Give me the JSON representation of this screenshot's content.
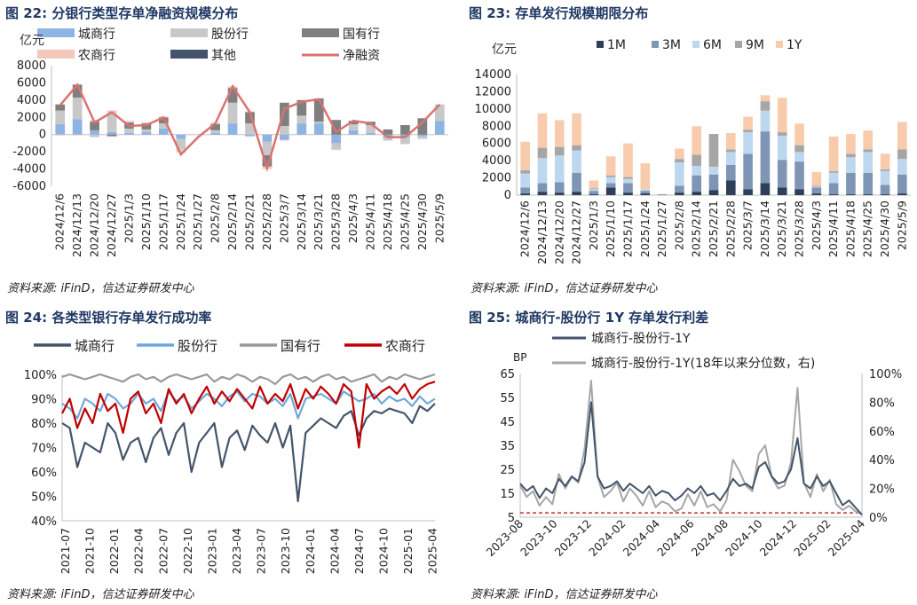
{
  "colors": {
    "title": "#1f3864"
  },
  "charts": [
    {
      "id": "c22",
      "title": "图 22: 分银行类型存单净融资规模分布",
      "source": "资料来源: iFinD，信达证券研发中心",
      "chart_data": {
        "type": "bar",
        "unit_label": "亿元",
        "ylim": [
          -6000,
          8000
        ],
        "yticks": [
          "8000",
          "6000",
          "4000",
          "2000",
          "0",
          "-2000",
          "-4000",
          "-6000"
        ],
        "ytick_values": [
          8000,
          6000,
          4000,
          2000,
          0,
          -2000,
          -4000,
          -6000
        ],
        "categories": [
          "2024/12/6",
          "2024/12/13",
          "2024/12/20",
          "2024/12/27",
          "2025/1/3",
          "2025/1/10",
          "2025/1/17",
          "2025/1/24",
          "2025/1/27",
          "2025/2/8",
          "2025/2/14",
          "2025/2/21",
          "2025/2/28",
          "2025/3/7",
          "2025/3/14",
          "2025/3/21",
          "2025/3/28",
          "2025/4/3",
          "2025/4/11",
          "2025/4/18",
          "2025/4/25",
          "2025/4/30",
          "2025/5/9"
        ],
        "series": [
          {
            "name": "城商行",
            "color": "#8db4e2",
            "values": [
              1200,
              1800,
              500,
              300,
              200,
              300,
              700,
              -500,
              0,
              200,
              1300,
              -200,
              -800,
              -600,
              1300,
              1300,
              -1000,
              500,
              200,
              -400,
              -300,
              -200,
              1600
            ]
          },
          {
            "name": "股份行",
            "color": "#c8c8c8",
            "values": [
              1600,
              2500,
              -300,
              2200,
              500,
              300,
              600,
              -1200,
              0,
              300,
              2400,
              1300,
              -1600,
              1000,
              900,
              200,
              -700,
              700,
              900,
              -300,
              -800,
              -300,
              1900
            ]
          },
          {
            "name": "国有行",
            "color": "#7f7f7f",
            "values": [
              700,
              1500,
              1000,
              -200,
              700,
              700,
              700,
              0,
              0,
              700,
              1700,
              1300,
              -1300,
              2700,
              1800,
              2700,
              1700,
              400,
              400,
              600,
              1100,
              1900,
              0
            ]
          },
          {
            "name": "农商行",
            "color": "#f4c7b8",
            "values": [
              -100,
              -100,
              200,
              300,
              200,
              100,
              100,
              -400,
              0,
              200,
              200,
              100,
              -300,
              -100,
              0,
              0,
              -100,
              0,
              0,
              0,
              0,
              0,
              0
            ]
          },
          {
            "name": "其他",
            "color": "#44546a",
            "values": [
              0,
              0,
              0,
              0,
              0,
              0,
              0,
              0,
              0,
              0,
              0,
              0,
              0,
              0,
              0,
              0,
              0,
              0,
              0,
              0,
              0,
              0,
              0
            ]
          }
        ],
        "line": {
          "name": "净融资",
          "color": "#d97373",
          "values": [
            3400,
            5800,
            1400,
            2600,
            1000,
            1100,
            2000,
            -2300,
            -300,
            1300,
            5600,
            2600,
            -3900,
            3000,
            3800,
            4100,
            300,
            1600,
            1300,
            -300,
            -300,
            1400,
            3500
          ]
        }
      }
    },
    {
      "id": "c23",
      "title": "图 23: 存单发行规模期限分布",
      "source": "资料来源: iFinD，信达证券研发中心",
      "chart_data": {
        "type": "bar",
        "unit_label": "亿元",
        "ylim": [
          0,
          14000
        ],
        "yticks": [
          "14000",
          "12000",
          "10000",
          "8000",
          "6000",
          "4000",
          "2000",
          "0"
        ],
        "ytick_values": [
          14000,
          12000,
          10000,
          8000,
          6000,
          4000,
          2000,
          0
        ],
        "categories": [
          "2024/12/6",
          "2024/12/13",
          "2024/12/20",
          "2024/12/27",
          "2025/1/3",
          "2025/1/10",
          "2025/1/17",
          "2025/1/24",
          "2025/1/27",
          "2025/2/8",
          "2025/2/14",
          "2025/2/21",
          "2025/2/28",
          "2025/3/7",
          "2025/3/14",
          "2025/3/21",
          "2025/3/28",
          "2025/4/3",
          "2025/4/11",
          "2025/4/18",
          "2025/4/25",
          "2025/4/30",
          "2025/5/9"
        ],
        "series": [
          {
            "name": "1M",
            "color": "#2f3f5a",
            "values": [
              200,
              400,
              300,
              400,
              100,
              900,
              300,
              200,
              0,
              300,
              400,
              600,
              1700,
              700,
              1400,
              900,
              700,
              200,
              100,
              100,
              100,
              100,
              200
            ]
          },
          {
            "name": "3M",
            "color": "#7f95b5",
            "values": [
              700,
              1000,
              1200,
              2200,
              400,
              500,
              1100,
              300,
              100,
              800,
              1900,
              1800,
              1800,
              4100,
              6000,
              3200,
              3200,
              700,
              1300,
              2500,
              2500,
              1100,
              2200
            ]
          },
          {
            "name": "6M",
            "color": "#bdd7ee",
            "values": [
              1600,
              2900,
              3100,
              2600,
              200,
              700,
              500,
              200,
              0,
              2700,
              1100,
              900,
              1500,
              2500,
              2400,
              2800,
              1100,
              100,
              1200,
              1800,
              2400,
              1600,
              1800
            ]
          },
          {
            "name": "9M",
            "color": "#a6a6a6",
            "values": [
              400,
              1200,
              1000,
              600,
              100,
              200,
              200,
              0,
              0,
              400,
              1300,
              3800,
              300,
              300,
              1100,
              400,
              800,
              100,
              200,
              400,
              300,
              200,
              1100
            ]
          },
          {
            "name": "1Y",
            "color": "#f8cbad",
            "values": [
              3300,
              4000,
              3100,
              3700,
              900,
              2200,
              3900,
              3000,
              0,
              1200,
              3300,
              0,
              1900,
              1500,
              700,
              4000,
              2500,
              1600,
              4000,
              2300,
              2200,
              1800,
              3200
            ]
          }
        ]
      }
    },
    {
      "id": "c24",
      "title": "图 24: 各类型银行存单发行成功率",
      "source": "资料来源: iFinD，信达证券研发中心",
      "chart_data": {
        "type": "line",
        "ylim": [
          40,
          100
        ],
        "yticks": [
          "100%",
          "90%",
          "80%",
          "70%",
          "60%",
          "50%",
          "40%"
        ],
        "ytick_values": [
          100,
          90,
          80,
          70,
          60,
          50,
          40
        ],
        "xticks": [
          "2021-07",
          "2021-10",
          "2022-01",
          "2022-04",
          "2022-07",
          "2022-10",
          "2023-01",
          "2023-04",
          "2023-07",
          "2023-10",
          "2024-01",
          "2024-04",
          "2024-07",
          "2024-10",
          "2025-01",
          "2025-04"
        ],
        "series": [
          {
            "name": "城商行",
            "color": "#44546a",
            "values": [
              80,
              78,
              62,
              72,
              70,
              68,
              80,
              76,
              65,
              72,
              74,
              64,
              74,
              78,
              67,
              76,
              80,
              60,
              72,
              76,
              80,
              62,
              74,
              77,
              69,
              79,
              75,
              72,
              80,
              70,
              79,
              48,
              76,
              79,
              82,
              80,
              78,
              83,
              85,
              75,
              82,
              85,
              84,
              86,
              85,
              84,
              80,
              87,
              85,
              88
            ]
          },
          {
            "name": "股份行",
            "color": "#6fa8dc",
            "values": [
              88,
              86,
              82,
              90,
              88,
              85,
              92,
              90,
              86,
              88,
              92,
              88,
              90,
              85,
              93,
              89,
              91,
              86,
              89,
              92,
              90,
              87,
              91,
              93,
              89,
              92,
              91,
              88,
              90,
              87,
              92,
              82,
              90,
              91,
              92,
              90,
              88,
              93,
              91,
              89,
              90,
              92,
              88,
              91,
              89,
              90,
              87,
              91,
              88,
              90
            ]
          },
          {
            "name": "国有行",
            "color": "#999999",
            "values": [
              99,
              100,
              99,
              98,
              99,
              100,
              99,
              98,
              97,
              99,
              100,
              98,
              99,
              97,
              99,
              100,
              99,
              98,
              99,
              100,
              97,
              99,
              98,
              100,
              99,
              97,
              99,
              98,
              96,
              99,
              100,
              98,
              99,
              97,
              99,
              100,
              98,
              99,
              97,
              98,
              99,
              100,
              97,
              99,
              98,
              100,
              99,
              98,
              99,
              100
            ]
          },
          {
            "name": "农商行",
            "color": "#c00000",
            "values": [
              84,
              90,
              78,
              86,
              80,
              92,
              85,
              88,
              76,
              90,
              93,
              84,
              88,
              80,
              94,
              88,
              92,
              84,
              90,
              95,
              88,
              93,
              89,
              94,
              90,
              86,
              95,
              88,
              92,
              89,
              96,
              86,
              94,
              90,
              95,
              92,
              88,
              96,
              93,
              70,
              96,
              90,
              93,
              95,
              92,
              96,
              90,
              94,
              96,
              97
            ]
          }
        ]
      }
    },
    {
      "id": "c25",
      "title": "图 25: 城商行-股份行 1Y 存单发行利差",
      "source": "资料来源: iFinD，信达证券研发中心",
      "chart_data": {
        "type": "line",
        "unit_label": "BP",
        "ylim": [
          5,
          65
        ],
        "yticks": [
          "65",
          "55",
          "45",
          "35",
          "25",
          "15",
          "5"
        ],
        "ytick_values": [
          65,
          55,
          45,
          35,
          25,
          15,
          5
        ],
        "ylim_right": [
          0,
          100
        ],
        "yticks_right": [
          "100%",
          "80%",
          "60%",
          "40%",
          "20%",
          "0%"
        ],
        "ytick_values_right": [
          100,
          80,
          60,
          40,
          20,
          0
        ],
        "xticks": [
          "2023-08",
          "2023-10",
          "2023-12",
          "2024-02",
          "2024-04",
          "2024-06",
          "2024-08",
          "2024-10",
          "2024-12",
          "2025-02",
          "2025-04"
        ],
        "baseline_pct": 3,
        "series": [
          {
            "name": "城商行-股份行-1Y",
            "color": "#44546a",
            "axis": "left",
            "values": [
              19,
              16,
              18,
              13,
              17,
              15,
              21,
              18,
              22,
              20,
              28,
              53,
              22,
              17,
              18,
              20,
              16,
              19,
              17,
              15,
              18,
              14,
              16,
              15,
              12,
              14,
              17,
              15,
              18,
              14,
              15,
              12,
              16,
              21,
              18,
              19,
              17,
              26,
              28,
              22,
              19,
              20,
              25,
              38,
              19,
              17,
              22,
              18,
              20,
              15,
              10,
              12,
              9,
              6
            ]
          },
          {
            "name": "城商行-股份行-1Y(18年以来分位数，右)",
            "color": "#a6a6a6",
            "axis": "right",
            "values": [
              22,
              14,
              18,
              8,
              14,
              9,
              30,
              20,
              28,
              24,
              48,
              95,
              28,
              14,
              18,
              24,
              11,
              20,
              15,
              8,
              18,
              7,
              11,
              9,
              4,
              6,
              16,
              8,
              18,
              7,
              9,
              4,
              12,
              40,
              32,
              22,
              18,
              44,
              50,
              28,
              20,
              22,
              38,
              90,
              24,
              14,
              30,
              18,
              26,
              9,
              5,
              8,
              4,
              2
            ]
          }
        ]
      }
    }
  ]
}
